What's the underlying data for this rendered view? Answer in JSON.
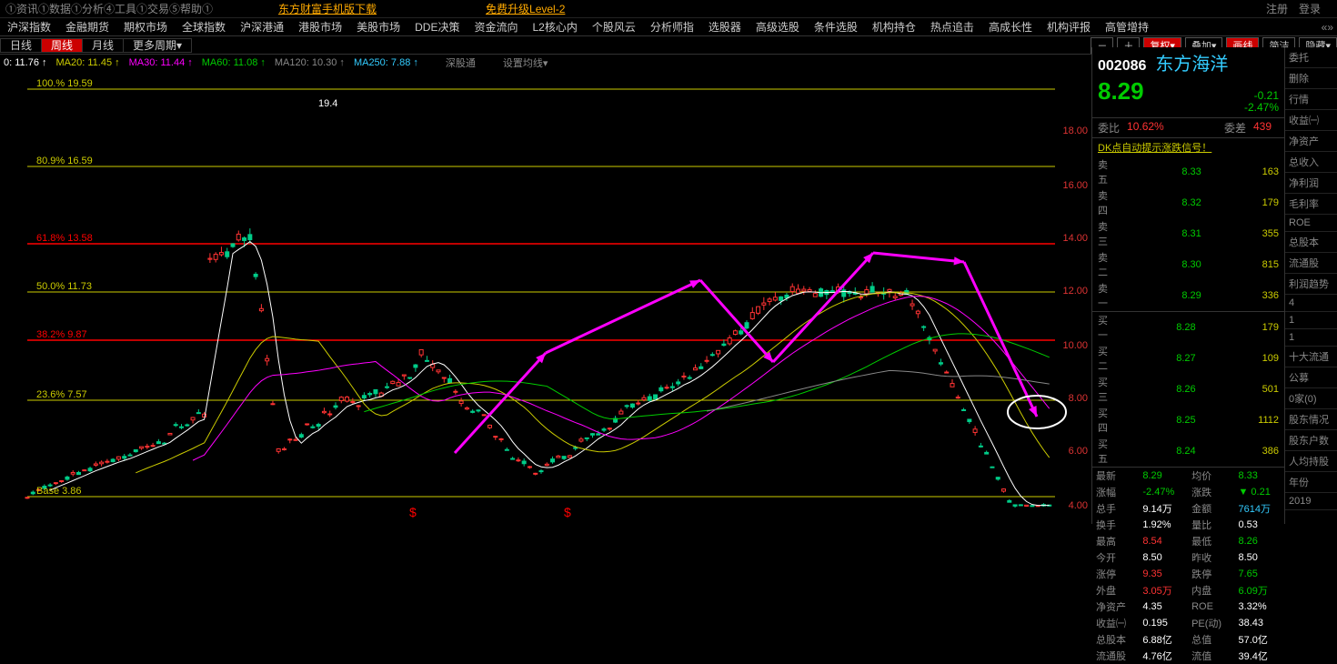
{
  "topbar": {
    "items": [
      "①资讯①数据①分析④工具①交易⑤帮助①"
    ],
    "links": [
      "东方财富手机版下载",
      "免费升级Level-2"
    ],
    "right": [
      "注册",
      "登录"
    ]
  },
  "tabs": [
    "沪深指数",
    "金融期货",
    "期权市场",
    "全球指数",
    "沪深港通",
    "港股市场",
    "美股市场",
    "DDE决策",
    "资金流向",
    "L2核心内",
    "个股风云",
    "分析师指",
    "选股器",
    "高级选股",
    "条件选股",
    "机构持仓",
    "热点追击",
    "高成长性",
    "机构评报",
    "高管增持"
  ],
  "periods": {
    "items": [
      "日线",
      "周线",
      "月线",
      "更多周期▾"
    ],
    "active": 1
  },
  "tools": {
    "minus": "－",
    "plus": "＋",
    "fq": "复权▾",
    "dj": "叠加▾",
    "hx": "画线",
    "jj": "简洁",
    "yc": "隐藏▾"
  },
  "ma": {
    "ma5": {
      "label": "0:",
      "val": "11.76",
      "arrow": "↑",
      "color": "#fff"
    },
    "ma20": {
      "label": "MA20:",
      "val": "11.45",
      "arrow": "↑",
      "color": "#cc0"
    },
    "ma30": {
      "label": "MA30:",
      "val": "11.44",
      "arrow": "↑",
      "color": "#f0f"
    },
    "ma60": {
      "label": "MA60:",
      "val": "11.08",
      "arrow": "↑",
      "color": "#0c0"
    },
    "ma120": {
      "label": "MA120:",
      "val": "10.30",
      "arrow": "↑",
      "color": "#888"
    },
    "ma250": {
      "label": "MA250:",
      "val": "7.88",
      "arrow": "↑",
      "color": "#3cf"
    },
    "extra": [
      "深股通",
      "设置均线▾"
    ]
  },
  "stock": {
    "code": "002086",
    "name": "东方海洋",
    "price": "8.29",
    "change": "-0.21",
    "pct": "-2.47%",
    "dir": "down",
    "wb": "10.62%",
    "wc": "439",
    "dk": "DK点自动提示涨跌信号！",
    "asks": [
      [
        "卖五",
        "8.33",
        "163"
      ],
      [
        "卖四",
        "8.32",
        "179"
      ],
      [
        "卖三",
        "8.31",
        "355"
      ],
      [
        "卖二",
        "8.30",
        "815"
      ],
      [
        "卖一",
        "8.29",
        "336"
      ]
    ],
    "bids": [
      [
        "买一",
        "8.28",
        "179"
      ],
      [
        "买二",
        "8.27",
        "109"
      ],
      [
        "买三",
        "8.26",
        "501"
      ],
      [
        "买四",
        "8.25",
        "1112"
      ],
      [
        "买五",
        "8.24",
        "386"
      ]
    ],
    "stats": [
      [
        "最新",
        "8.29",
        "g",
        "均价",
        "8.33",
        "g"
      ],
      [
        "涨幅",
        "-2.47%",
        "g",
        "涨跌",
        "▼ 0.21",
        "g"
      ],
      [
        "总手",
        "9.14万",
        "w",
        "金额",
        "7614万",
        "c"
      ],
      [
        "换手",
        "1.92%",
        "w",
        "量比",
        "0.53",
        "w"
      ],
      [
        "最高",
        "8.54",
        "r",
        "最低",
        "8.26",
        "g"
      ],
      [
        "今开",
        "8.50",
        "w",
        "昨收",
        "8.50",
        "w"
      ],
      [
        "涨停",
        "9.35",
        "r",
        "跌停",
        "7.65",
        "g"
      ],
      [
        "外盘",
        "3.05万",
        "r",
        "内盘",
        "6.09万",
        "g"
      ],
      [
        "净资产",
        "4.35",
        "w",
        "ROE",
        "3.32%",
        "w"
      ],
      [
        "收益㈠",
        "0.195",
        "w",
        "PE(动)",
        "38.43",
        "w"
      ],
      [
        "总股本",
        "6.88亿",
        "w",
        "总值",
        "57.0亿",
        "w"
      ],
      [
        "流通股",
        "4.76亿",
        "w",
        "流值",
        "39.4亿",
        "w"
      ]
    ]
  },
  "far": [
    "委托",
    "删除",
    "行情",
    "收益㈠",
    "净资产",
    "总收入",
    "净利润",
    "毛利率",
    "ROE",
    "总股本",
    "流通股",
    "利润趋势",
    "4",
    "1",
    "1",
    "十大流通",
    "公募",
    "0家(0)",
    "股东情况",
    "股东户数",
    "人均持股",
    "年份",
    "2019"
  ],
  "chart": {
    "fib": [
      [
        "100.%",
        "19.59",
        20
      ],
      [
        "80.9%",
        "16.59",
        105
      ],
      [
        "61.8%",
        "13.58",
        190
      ],
      [
        "50.0%",
        "11.73",
        243
      ],
      [
        "38.2%",
        "9.87",
        296
      ],
      [
        "23.6%",
        "7.57",
        362
      ],
      [
        "Base",
        "3.86",
        468
      ]
    ],
    "ylabels": [
      [
        "18.00",
        60
      ],
      [
        "16.00",
        120
      ],
      [
        "14.00",
        178
      ],
      [
        "12.00",
        236
      ],
      [
        "10.00",
        296
      ],
      [
        "8.00",
        354
      ],
      [
        "6.00",
        412
      ],
      [
        "4.00",
        472
      ]
    ],
    "fib_red_idx": [
      2,
      4
    ],
    "peak_label": "19.4",
    "colors": {
      "fib": "#cc0",
      "fib_red": "#f00",
      "yaxis": "#d33",
      "candle_up": "#f33",
      "candle_dn": "#0c8",
      "arrow": "#f0f",
      "circle": "#fff"
    }
  }
}
